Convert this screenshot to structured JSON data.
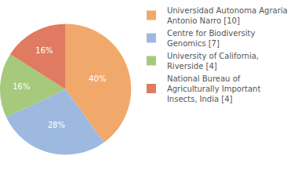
{
  "chart_data": {
    "type": "pie",
    "categories": [
      "Universidad Autonoma Agraria Antonio Narro [10]",
      "Centre for Biodiversity Genomics [7]",
      "University of California, Riverside [4]",
      "National Bureau of Agriculturally Important Insects, India [4]"
    ],
    "values": [
      40,
      28,
      16,
      16
    ],
    "value_labels": [
      "40%",
      "28%",
      "16%",
      "16%"
    ],
    "data_labels": true,
    "colors": [
      "#f0a96b",
      "#9db9e0",
      "#a6c97c",
      "#e07b62"
    ],
    "legend": "right"
  }
}
